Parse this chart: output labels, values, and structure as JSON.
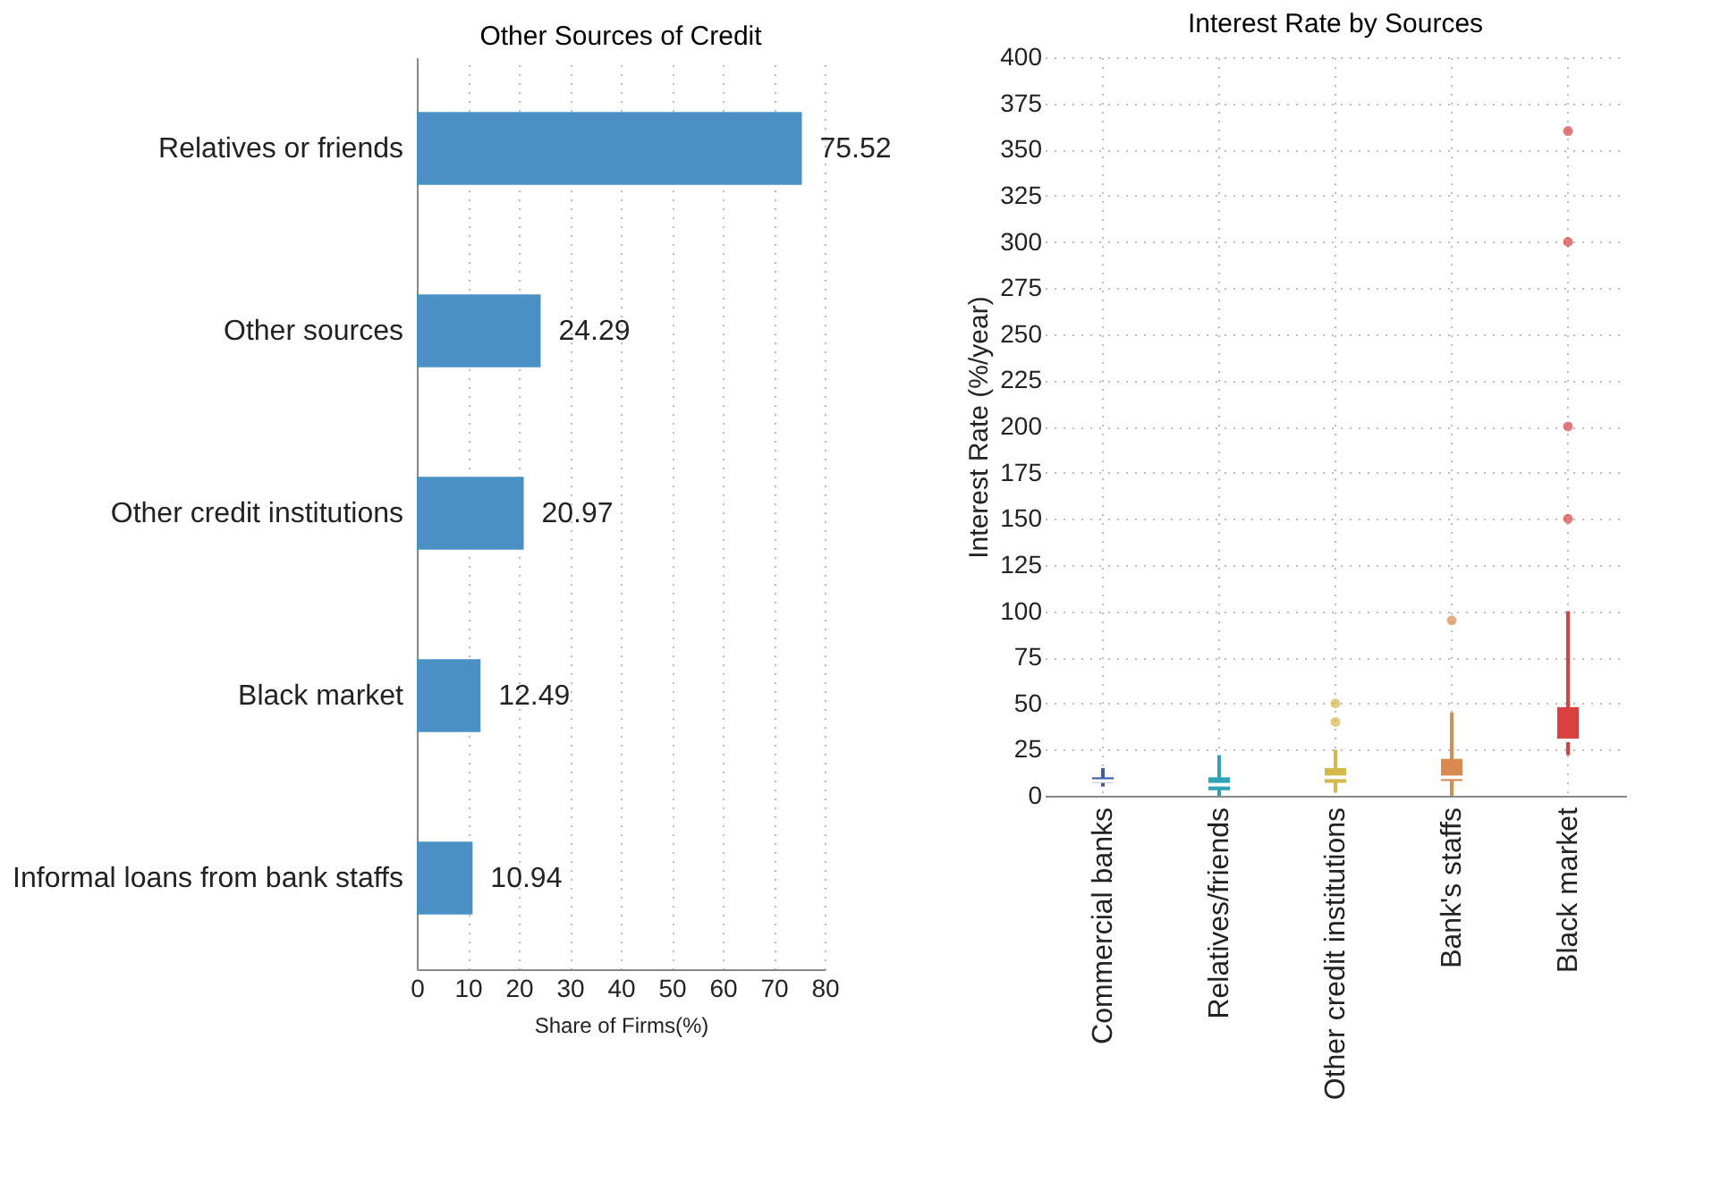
{
  "chart_data": [
    {
      "type": "bar",
      "title": "Other Sources of Credit",
      "xlabel": "Share of Firms(%)",
      "orientation": "horizontal",
      "categories": [
        "Relatives or friends",
        "Other sources",
        "Other credit institutions",
        "Black market",
        "Informal loans from bank staffs"
      ],
      "values": [
        75.52,
        24.29,
        20.97,
        12.49,
        10.94
      ],
      "color": "#4a90c4",
      "data_labels": true,
      "xlim": [
        0,
        80
      ],
      "xticks": [
        0,
        10,
        20,
        30,
        40,
        50,
        60,
        70,
        80
      ],
      "grid": "x"
    },
    {
      "type": "box",
      "title": "Interest Rate by Sources",
      "ylabel": "Interest Rate (%/year)",
      "categories": [
        "Commercial banks",
        "Relatives/friends",
        "Other credit institutions",
        "Bank's staffs",
        "Black market"
      ],
      "colors": [
        "#3b5fb0",
        "#2fa3b8",
        "#d4b84a",
        "#d98a4f",
        "#d94040"
      ],
      "boxes": [
        {
          "low": 5,
          "q1": 7,
          "median": 8,
          "q3": 10,
          "high": 15
        },
        {
          "low": 0,
          "q1": 3,
          "median": 6,
          "q3": 10,
          "high": 22
        },
        {
          "low": 2,
          "q1": 7,
          "median": 10,
          "q3": 15,
          "high": 25,
          "outliers": [
            40,
            50
          ]
        },
        {
          "low": 0,
          "q1": 8,
          "median": 10,
          "q3": 20,
          "high": 45,
          "outliers": [
            95
          ]
        },
        {
          "low": 22,
          "q1": 30,
          "median": 30,
          "q3": 48,
          "high": 100,
          "outliers": [
            150,
            200,
            300,
            360
          ]
        }
      ],
      "ylim": [
        0,
        400
      ],
      "yticks": [
        0,
        25,
        50,
        75,
        100,
        125,
        150,
        175,
        200,
        225,
        250,
        275,
        300,
        325,
        350,
        375,
        400
      ],
      "grid": true
    }
  ]
}
